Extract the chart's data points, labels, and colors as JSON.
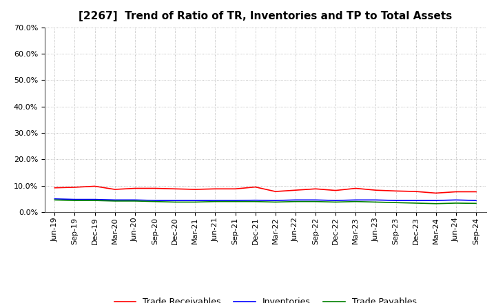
{
  "title": "[2267]  Trend of Ratio of TR, Inventories and TP to Total Assets",
  "x_labels": [
    "Jun-19",
    "Sep-19",
    "Dec-19",
    "Mar-20",
    "Jun-20",
    "Sep-20",
    "Dec-20",
    "Mar-21",
    "Jun-21",
    "Sep-21",
    "Dec-21",
    "Mar-22",
    "Jun-22",
    "Sep-22",
    "Dec-22",
    "Mar-23",
    "Jun-23",
    "Sep-23",
    "Dec-23",
    "Mar-24",
    "Jun-24",
    "Sep-24"
  ],
  "trade_receivables": [
    0.092,
    0.094,
    0.098,
    0.086,
    0.09,
    0.09,
    0.088,
    0.086,
    0.088,
    0.088,
    0.095,
    0.078,
    0.083,
    0.088,
    0.082,
    0.09,
    0.083,
    0.08,
    0.078,
    0.072,
    0.077,
    0.077
  ],
  "inventories": [
    0.05,
    0.048,
    0.048,
    0.046,
    0.046,
    0.044,
    0.044,
    0.044,
    0.044,
    0.044,
    0.045,
    0.044,
    0.046,
    0.046,
    0.044,
    0.046,
    0.046,
    0.044,
    0.044,
    0.044,
    0.046,
    0.044
  ],
  "trade_payables": [
    0.046,
    0.044,
    0.044,
    0.042,
    0.042,
    0.04,
    0.038,
    0.038,
    0.04,
    0.04,
    0.04,
    0.038,
    0.04,
    0.04,
    0.038,
    0.04,
    0.038,
    0.036,
    0.034,
    0.032,
    0.034,
    0.033
  ],
  "tr_color": "#FF0000",
  "inv_color": "#0000FF",
  "tp_color": "#008000",
  "ylim": [
    0.0,
    0.7
  ],
  "yticks": [
    0.0,
    0.1,
    0.2,
    0.3,
    0.4,
    0.5,
    0.6,
    0.7
  ],
  "legend_labels": [
    "Trade Receivables",
    "Inventories",
    "Trade Payables"
  ],
  "bg_color": "#FFFFFF",
  "plot_bg_color": "#FFFFFF",
  "grid_color": "#AAAAAA",
  "title_fontsize": 11,
  "tick_fontsize": 8,
  "legend_fontsize": 9
}
